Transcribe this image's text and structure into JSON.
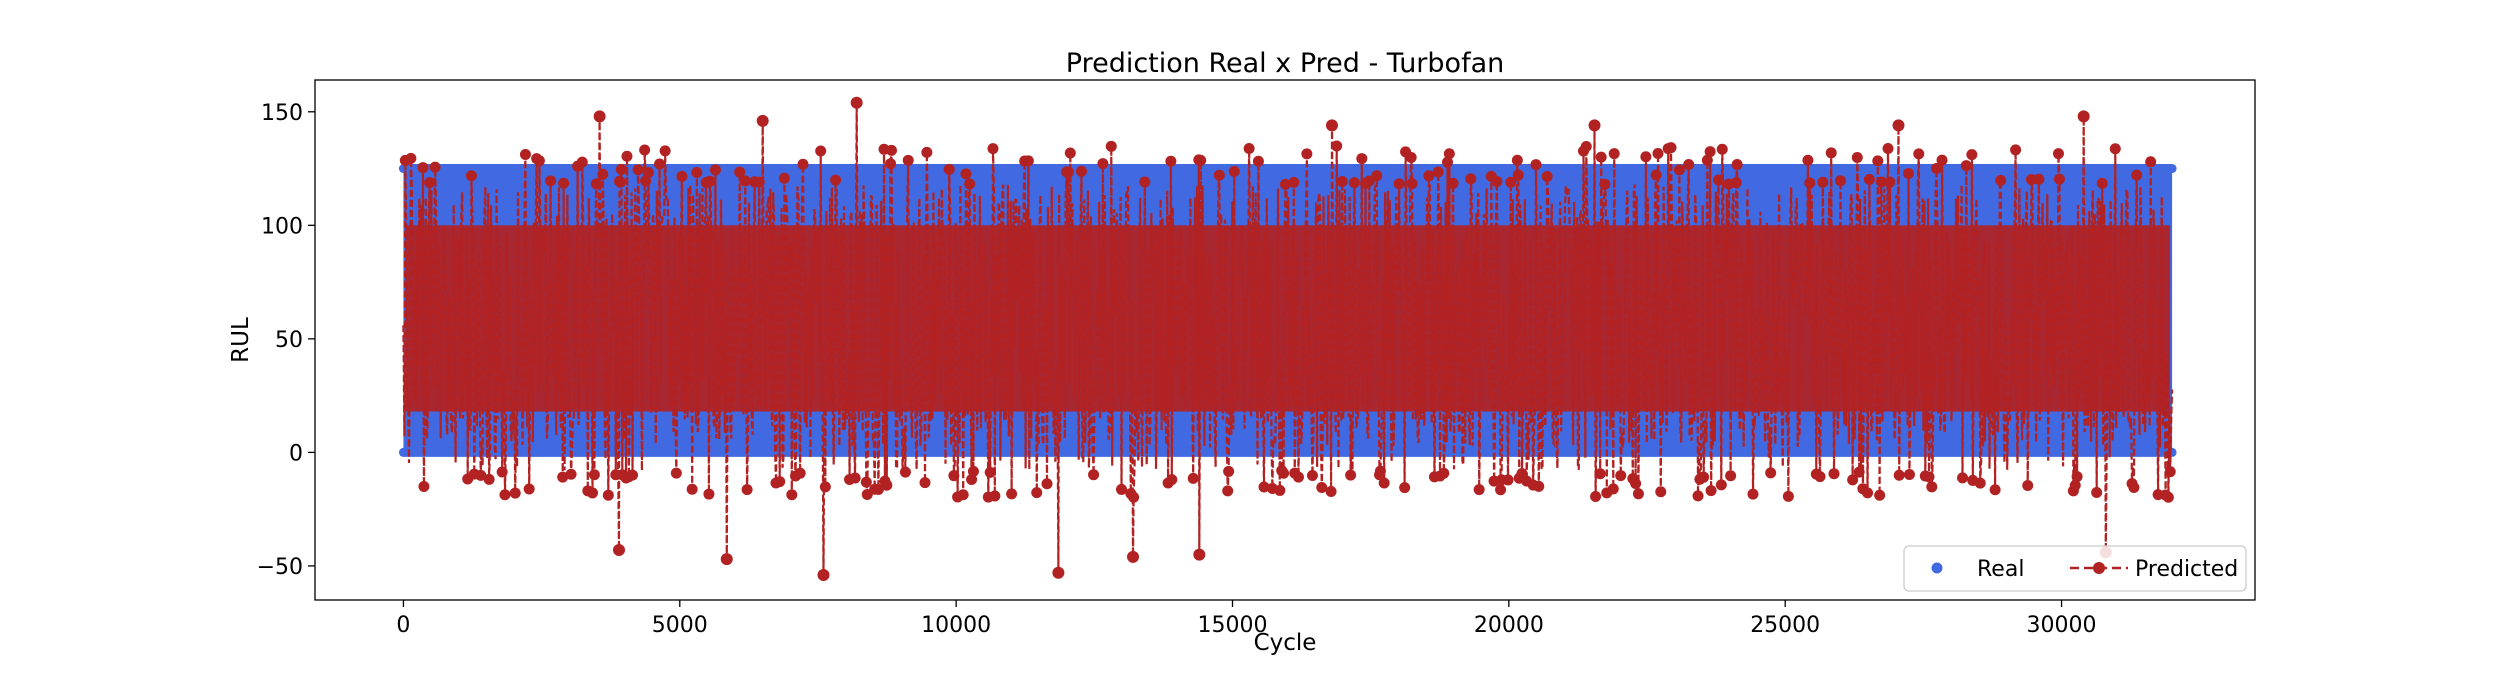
{
  "chart_data": {
    "type": "line",
    "title": "Prediction Real x Pred - Turbofan",
    "xlabel": "Cycle",
    "ylabel": "RUL",
    "xlim": [
      -1600,
      33500
    ],
    "ylim": [
      -65,
      164
    ],
    "x_ticks": [
      0,
      5000,
      10000,
      15000,
      20000,
      25000,
      30000
    ],
    "x_tick_labels": [
      "0",
      "5000",
      "10000",
      "15000",
      "20000",
      "25000",
      "30000"
    ],
    "y_ticks": [
      -50,
      0,
      50,
      100,
      150
    ],
    "y_tick_labels": [
      "−50",
      "0",
      "50",
      "100",
      "150"
    ],
    "grid": false,
    "legend_position": "bottom-right",
    "series": [
      {
        "name": "Real",
        "style": "markers",
        "color": "#4169e1",
        "x_range": [
          0,
          32000
        ],
        "value_range": [
          0,
          125
        ],
        "note_cap": 125
      },
      {
        "name": "Predicted",
        "style": "dashed line with circle markers",
        "color": "#b22222",
        "x_range": [
          0,
          32000
        ],
        "value_range": [
          -54,
          154
        ],
        "notable_points": [
          {
            "x": 8200,
            "y": 154
          },
          {
            "x": 3550,
            "y": 148
          },
          {
            "x": 30400,
            "y": 148
          },
          {
            "x": 6500,
            "y": 146
          },
          {
            "x": 16800,
            "y": 144
          },
          {
            "x": 21550,
            "y": 144
          },
          {
            "x": 27050,
            "y": 144
          },
          {
            "x": 7600,
            "y": -54
          },
          {
            "x": 11850,
            "y": -53
          },
          {
            "x": 5850,
            "y": -47
          },
          {
            "x": 13200,
            "y": -46
          },
          {
            "x": 14400,
            "y": -45
          },
          {
            "x": 30800,
            "y": -44
          },
          {
            "x": 3900,
            "y": -43
          }
        ]
      }
    ]
  }
}
